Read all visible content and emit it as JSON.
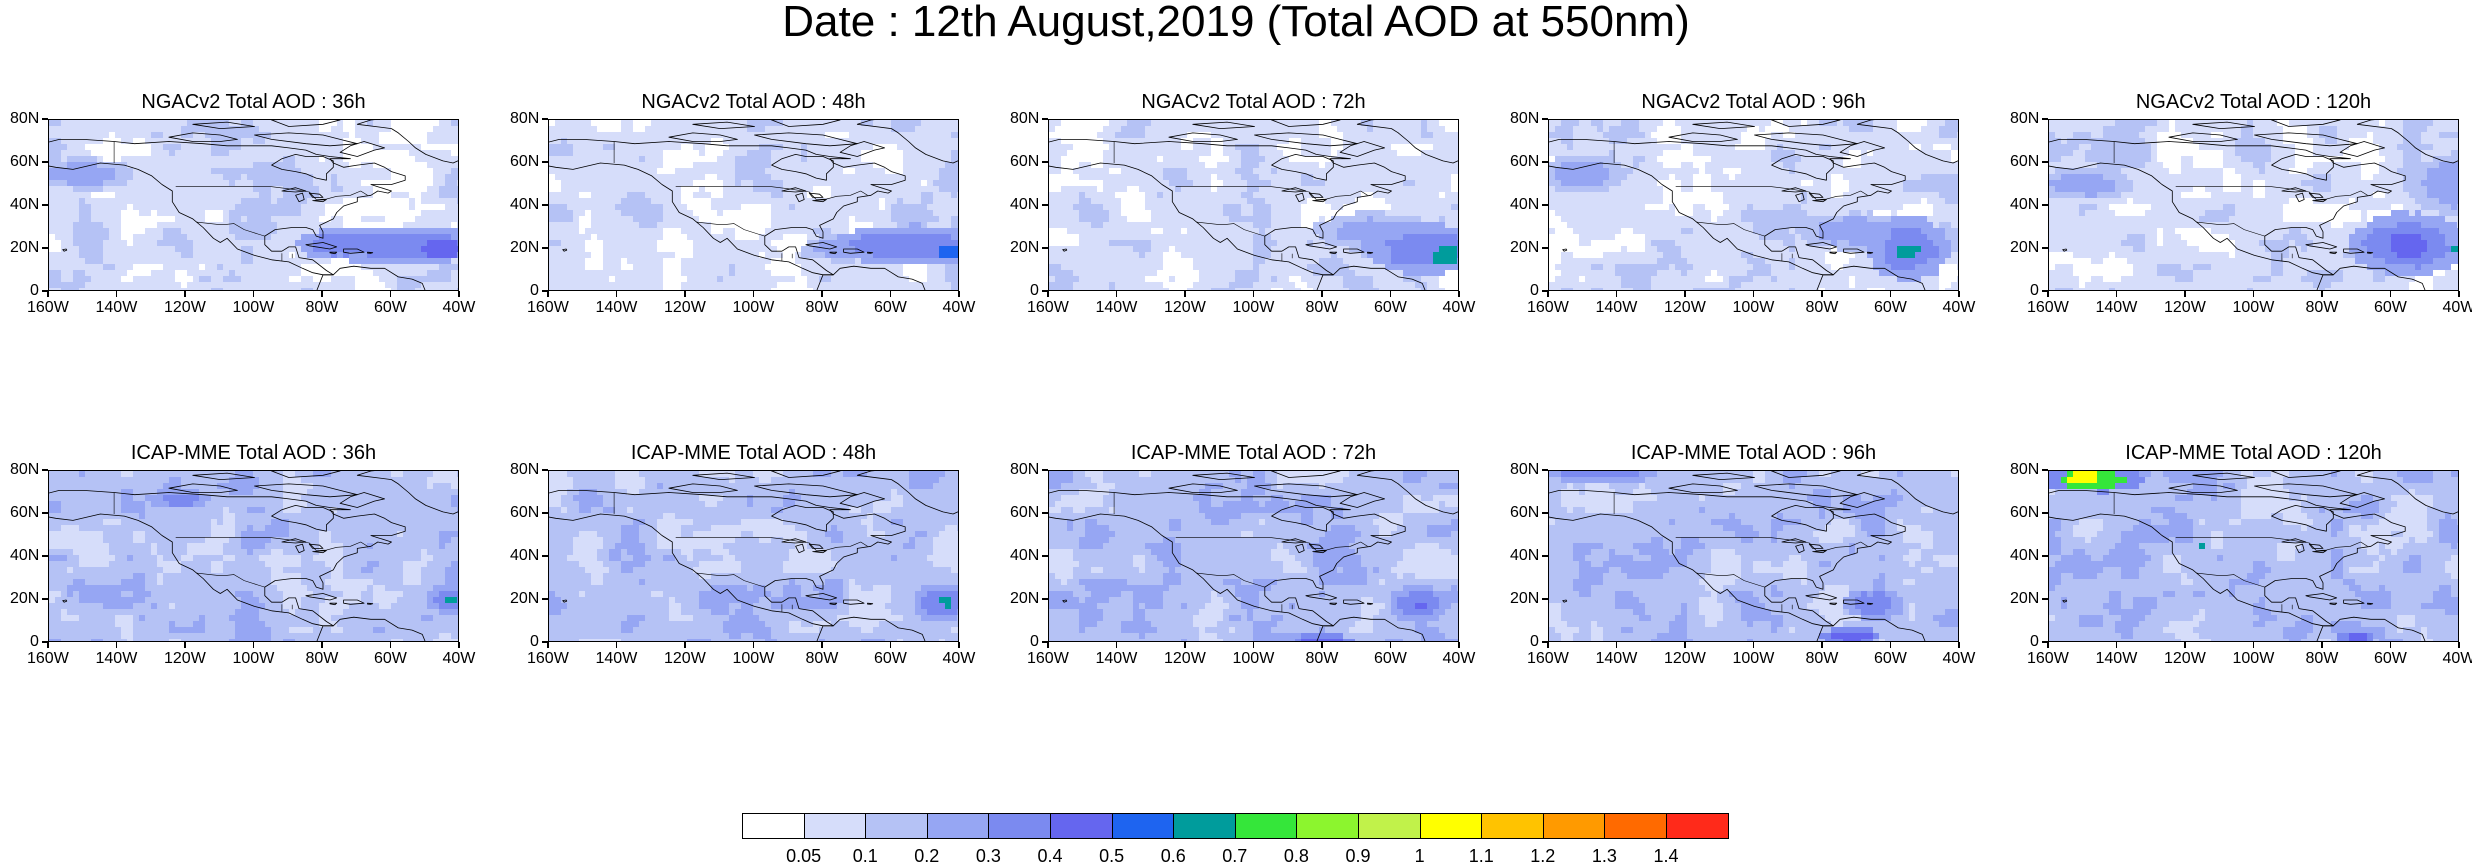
{
  "title": "Date : 12th August,2019 (Total AOD at 550nm)",
  "axes": {
    "x_ticks": [
      "160W",
      "140W",
      "120W",
      "100W",
      "80W",
      "60W",
      "40W"
    ],
    "y_ticks": [
      "80N",
      "60N",
      "40N",
      "20N",
      "0"
    ],
    "lon_range": [
      -160,
      -40
    ],
    "lat_range": [
      0,
      80
    ]
  },
  "panels": [
    {
      "title": "NGACv2 Total AOD : 36h",
      "row": 0,
      "col": 0,
      "base_level": 1,
      "features": [
        {
          "lon": -58,
          "lat": 22,
          "level": 4,
          "rx": 18,
          "ry": 6
        },
        {
          "lon": -45,
          "lat": 20,
          "level": 5,
          "rx": 6,
          "ry": 4
        },
        {
          "lon": -75,
          "lat": 22,
          "level": 4,
          "rx": 8,
          "ry": 5
        },
        {
          "lon": -150,
          "lat": 55,
          "level": 3,
          "rx": 10,
          "ry": 5
        }
      ]
    },
    {
      "title": "NGACv2 Total AOD : 48h",
      "row": 0,
      "col": 1,
      "base_level": 1,
      "features": [
        {
          "lon": -55,
          "lat": 22,
          "level": 4,
          "rx": 16,
          "ry": 6
        },
        {
          "lon": -43,
          "lat": 19,
          "level": 6,
          "rx": 4,
          "ry": 4
        },
        {
          "lon": -75,
          "lat": 20,
          "level": 3,
          "rx": 8,
          "ry": 4
        }
      ]
    },
    {
      "title": "NGACv2 Total AOD : 72h",
      "row": 0,
      "col": 2,
      "base_level": 1,
      "features": [
        {
          "lon": -50,
          "lat": 20,
          "level": 4,
          "rx": 12,
          "ry": 8
        },
        {
          "lon": -44,
          "lat": 17,
          "level": 7,
          "rx": 4,
          "ry": 4
        },
        {
          "lon": -65,
          "lat": 28,
          "level": 3,
          "rx": 12,
          "ry": 6
        }
      ]
    },
    {
      "title": "NGACv2 Total AOD : 96h",
      "row": 0,
      "col": 3,
      "base_level": 1,
      "features": [
        {
          "lon": -55,
          "lat": 20,
          "level": 4,
          "rx": 8,
          "ry": 10
        },
        {
          "lon": -55,
          "lat": 19,
          "level": 7,
          "rx": 3,
          "ry": 3
        },
        {
          "lon": -70,
          "lat": 28,
          "level": 3,
          "rx": 12,
          "ry": 6
        },
        {
          "lon": -150,
          "lat": 55,
          "level": 3,
          "rx": 8,
          "ry": 6
        }
      ]
    },
    {
      "title": "NGACv2 Total AOD : 120h",
      "row": 0,
      "col": 4,
      "base_level": 1,
      "features": [
        {
          "lon": -55,
          "lat": 22,
          "level": 4,
          "rx": 12,
          "ry": 10
        },
        {
          "lon": -55,
          "lat": 22,
          "level": 5,
          "rx": 5,
          "ry": 6
        },
        {
          "lon": -41,
          "lat": 20,
          "level": 7,
          "rx": 2,
          "ry": 2
        },
        {
          "lon": -150,
          "lat": 50,
          "level": 3,
          "rx": 10,
          "ry": 5
        },
        {
          "lon": -40,
          "lat": 50,
          "level": 3,
          "rx": 10,
          "ry": 10
        }
      ]
    },
    {
      "title": "ICAP-MME Total AOD : 36h",
      "row": 1,
      "col": 0,
      "base_level": 2,
      "features": [
        {
          "lon": -122,
          "lat": 67,
          "level": 4,
          "rx": 6,
          "ry": 3
        },
        {
          "lon": -42,
          "lat": 20,
          "level": 4,
          "rx": 5,
          "ry": 5
        },
        {
          "lon": -42,
          "lat": 20,
          "level": 7,
          "rx": 2,
          "ry": 2
        },
        {
          "lon": -110,
          "lat": 30,
          "level": 1,
          "rx": 10,
          "ry": 5
        }
      ]
    },
    {
      "title": "ICAP-MME Total AOD : 48h",
      "row": 1,
      "col": 1,
      "base_level": 2,
      "features": [
        {
          "lon": -45,
          "lat": 19,
          "level": 4,
          "rx": 6,
          "ry": 6
        },
        {
          "lon": -44,
          "lat": 19,
          "level": 7,
          "rx": 2,
          "ry": 2
        },
        {
          "lon": -115,
          "lat": 33,
          "level": 1,
          "rx": 8,
          "ry": 5
        }
      ]
    },
    {
      "title": "ICAP-MME Total AOD : 72h",
      "row": 1,
      "col": 2,
      "base_level": 2,
      "features": [
        {
          "lon": -52,
          "lat": 18,
          "level": 4,
          "rx": 6,
          "ry": 6
        },
        {
          "lon": -52,
          "lat": 18,
          "level": 5,
          "rx": 2,
          "ry": 2
        },
        {
          "lon": -80,
          "lat": 1,
          "level": 5,
          "rx": 6,
          "ry": 2
        },
        {
          "lon": -120,
          "lat": 35,
          "level": 1,
          "rx": 8,
          "ry": 4
        }
      ]
    },
    {
      "title": "ICAP-MME Total AOD : 96h",
      "row": 1,
      "col": 3,
      "base_level": 2,
      "features": [
        {
          "lon": -65,
          "lat": 18,
          "level": 4,
          "rx": 6,
          "ry": 5
        },
        {
          "lon": -72,
          "lat": 3,
          "level": 5,
          "rx": 6,
          "ry": 3
        },
        {
          "lon": -145,
          "lat": 78,
          "level": 4,
          "rx": 12,
          "ry": 2
        }
      ]
    },
    {
      "title": "ICAP-MME Total AOD : 120h",
      "row": 1,
      "col": 4,
      "base_level": 2,
      "features": [
        {
          "lon": -147,
          "lat": 76,
          "level": 8,
          "rx": 10,
          "ry": 4
        },
        {
          "lon": -150,
          "lat": 77,
          "level": 11,
          "rx": 5,
          "ry": 2
        },
        {
          "lon": -70,
          "lat": 2,
          "level": 5,
          "rx": 4,
          "ry": 2
        },
        {
          "lon": -115,
          "lat": 46,
          "level": 7,
          "rx": 1,
          "ry": 1
        }
      ]
    }
  ],
  "colorbar": {
    "labels": [
      "0.05",
      "0.1",
      "0.2",
      "0.3",
      "0.4",
      "0.5",
      "0.6",
      "0.7",
      "0.8",
      "0.9",
      "1",
      "1.1",
      "1.2",
      "1.3",
      "1.4"
    ],
    "colors": [
      "#ffffff",
      "#d6ddfa",
      "#b5c2f5",
      "#96a6f3",
      "#7b8af0",
      "#6566ef",
      "#1e64f0",
      "#009c9c",
      "#35e63a",
      "#8cf52e",
      "#c1f24a",
      "#ffff00",
      "#ffc300",
      "#ff9a00",
      "#ff6a00",
      "#ff2a1a"
    ]
  }
}
